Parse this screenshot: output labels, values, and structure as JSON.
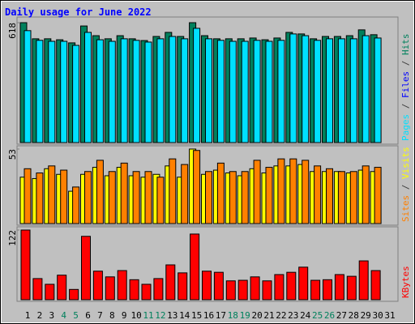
{
  "chart_data": [
    {
      "type": "bar",
      "title": "Daily usage for June 2022",
      "ylim": [
        0,
        618
      ],
      "yticks": [
        618
      ],
      "series": [
        {
          "name": "Hits",
          "color": "#00805c",
          "values": [
            618,
            535,
            535,
            530,
            514,
            601,
            551,
            535,
            551,
            535,
            526,
            547,
            568,
            547,
            618,
            551,
            535,
            535,
            535,
            539,
            530,
            539,
            568,
            560,
            535,
            547,
            547,
            551,
            581,
            556,
            null
          ]
        },
        {
          "name": "Files",
          "color": "#0000ff"
        },
        {
          "name": "Pages",
          "color": "#00e0ff",
          "values": [
            577,
            527,
            522,
            522,
            501,
            568,
            530,
            522,
            535,
            527,
            518,
            535,
            547,
            535,
            589,
            535,
            527,
            522,
            522,
            527,
            522,
            527,
            560,
            551,
            527,
            535,
            535,
            535,
            551,
            539,
            null
          ]
        }
      ],
      "legend_separator": " / "
    },
    {
      "type": "bar",
      "ylim": [
        0,
        53
      ],
      "yticks": [
        53
      ],
      "series": [
        {
          "name": "Visits",
          "color": "#ffff00",
          "values": [
            33,
            32,
            39,
            35,
            23,
            35,
            40,
            34,
            40,
            34,
            33,
            35,
            41,
            33,
            53,
            35,
            38,
            36,
            34,
            39,
            36,
            41,
            41,
            42,
            37,
            37,
            37,
            36,
            38,
            37,
            null
          ]
        },
        {
          "name": "Sites",
          "color": "#ff8000",
          "values": [
            39,
            36,
            41,
            38,
            26,
            37,
            45,
            37,
            43,
            37,
            37,
            33,
            46,
            42,
            52,
            37,
            43,
            37,
            37,
            45,
            40,
            46,
            46,
            45,
            41,
            39,
            37,
            37,
            41,
            40,
            null
          ]
        }
      ],
      "legend_separator": " / "
    },
    {
      "type": "bar",
      "ylim": [
        0,
        122
      ],
      "yticks": [
        122
      ],
      "series": [
        {
          "name": "KBytes",
          "color": "#ff0000",
          "values": [
            122,
            37,
            27,
            43,
            18,
            111,
            50,
            40,
            51,
            35,
            27,
            37,
            61,
            47,
            115,
            50,
            48,
            33,
            34,
            40,
            33,
            44,
            48,
            57,
            34,
            35,
            44,
            41,
            68,
            51,
            null
          ]
        }
      ],
      "categories": [
        "1",
        "2",
        "3",
        "4",
        "5",
        "6",
        "7",
        "8",
        "9",
        "10",
        "11",
        "12",
        "13",
        "14",
        "15",
        "16",
        "17",
        "18",
        "19",
        "20",
        "21",
        "22",
        "23",
        "24",
        "25",
        "26",
        "27",
        "28",
        "29",
        "30",
        "31"
      ],
      "category_colors": [
        "#000000",
        "#000000",
        "#000000",
        "#00805c",
        "#00805c",
        "#000000",
        "#000000",
        "#000000",
        "#000000",
        "#000000",
        "#00805c",
        "#00805c",
        "#000000",
        "#000000",
        "#000000",
        "#000000",
        "#000000",
        "#00805c",
        "#00805c",
        "#000000",
        "#000000",
        "#000000",
        "#000000",
        "#000000",
        "#00805c",
        "#00805c",
        "#000000",
        "#000000",
        "#000000",
        "#000000",
        "#000000"
      ]
    }
  ]
}
